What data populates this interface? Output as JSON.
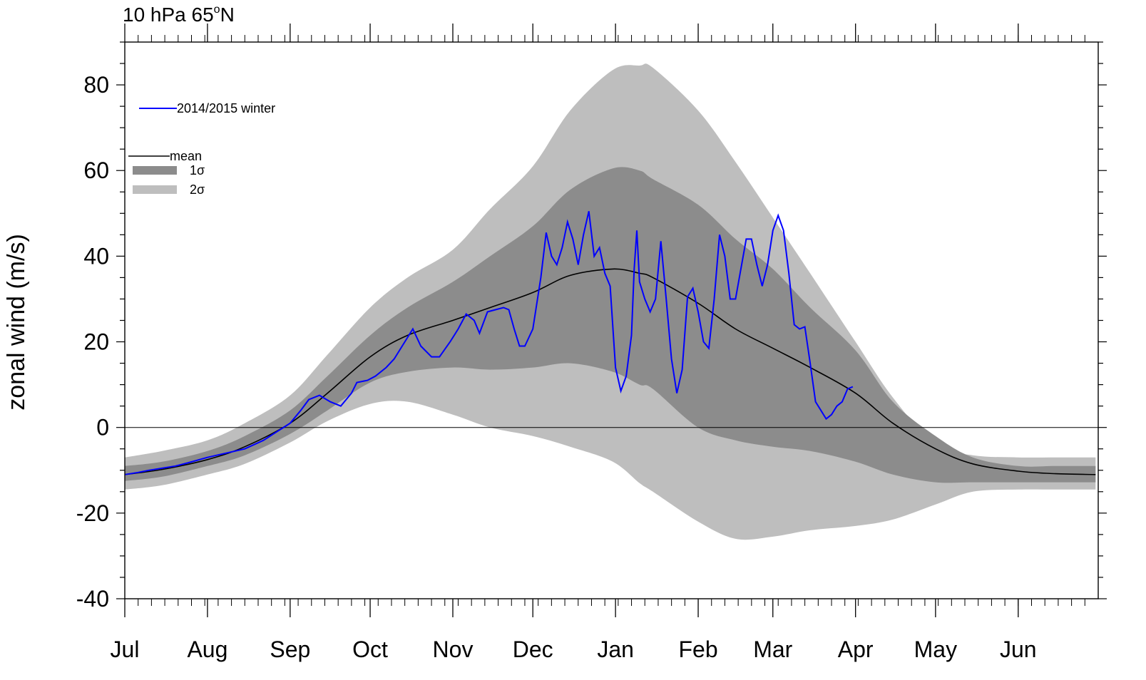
{
  "chart_data": {
    "type": "area",
    "title": "10 hPa 65°N",
    "title_parts": {
      "main": "10 hPa 65",
      "degree": "o",
      "suffix": "N"
    },
    "xlabel": "",
    "ylabel": "zonal wind (m/s)",
    "ylim": [
      -40,
      90
    ],
    "yticks": [
      -40,
      -20,
      0,
      20,
      40,
      60,
      80
    ],
    "ytick_labels": [
      "-40",
      "-20",
      "0",
      "20",
      "40",
      "60",
      "80"
    ],
    "xlim": [
      "2014-07-01",
      "2015-06-30"
    ],
    "month_ticks": [
      {
        "label": "Jul",
        "date": "2014-07-01"
      },
      {
        "label": "Aug",
        "date": "2014-08-01"
      },
      {
        "label": "Sep",
        "date": "2014-09-01"
      },
      {
        "label": "Oct",
        "date": "2014-10-01"
      },
      {
        "label": "Nov",
        "date": "2014-11-01"
      },
      {
        "label": "Dec",
        "date": "2014-12-01"
      },
      {
        "label": "Jan",
        "date": "2015-01-01"
      },
      {
        "label": "Feb",
        "date": "2015-02-01"
      },
      {
        "label": "Mar",
        "date": "2015-03-01"
      },
      {
        "label": "Apr",
        "date": "2015-04-01"
      },
      {
        "label": "May",
        "date": "2015-05-01"
      },
      {
        "label": "Jun",
        "date": "2015-06-01"
      }
    ],
    "zero_line": true,
    "grid": false,
    "legend": {
      "placement": "top-left",
      "entries": [
        {
          "key": "winter",
          "label": "2014/2015 winter",
          "kind": "line",
          "color": "#0000ff"
        },
        {
          "key": "mean",
          "label": "mean",
          "kind": "line",
          "color": "#000000"
        },
        {
          "key": "sigma1",
          "label": "1σ",
          "kind": "box",
          "color": "#8c8c8c"
        },
        {
          "key": "sigma2",
          "label": "2σ",
          "kind": "box",
          "color": "#bebebe"
        }
      ]
    },
    "colors": {
      "winter": "#0000ff",
      "mean": "#000000",
      "sigma1": "#8c8c8c",
      "sigma2": "#bebebe"
    },
    "climatology": {
      "x": [
        "2014-07-01",
        "2014-07-15",
        "2014-08-01",
        "2014-08-15",
        "2014-09-01",
        "2014-09-15",
        "2014-10-01",
        "2014-10-15",
        "2014-11-01",
        "2014-11-15",
        "2014-12-01",
        "2014-12-15",
        "2014-12-31",
        "2015-01-10",
        "2015-01-15",
        "2015-02-01",
        "2015-02-15",
        "2015-03-01",
        "2015-03-15",
        "2015-04-01",
        "2015-04-15",
        "2015-05-01",
        "2015-05-15",
        "2015-06-01",
        "2015-06-15",
        "2015-06-30"
      ],
      "mean": [
        -11,
        -9.8,
        -7.5,
        -4.5,
        1,
        8,
        16.5,
        21.5,
        25,
        28,
        31.5,
        35.5,
        37,
        36,
        35,
        29,
        23,
        18.5,
        14,
        8,
        1,
        -5,
        -8.5,
        -10.2,
        -10.8,
        -11
      ],
      "s1_low": [
        -12.5,
        -11.5,
        -9,
        -6.5,
        -1.5,
        4,
        10.5,
        13,
        14,
        13.5,
        14,
        15,
        13,
        10,
        9,
        0,
        -3,
        -4.5,
        -5.5,
        -8,
        -11,
        -12.8,
        -12.8,
        -12.8,
        -12.8,
        -12.8
      ],
      "s1_high": [
        -9,
        -8,
        -5.5,
        -2,
        4,
        12,
        21.5,
        28,
        34,
        40,
        47,
        55.5,
        60.5,
        60,
        58,
        52,
        44,
        37,
        28,
        18,
        6,
        -2,
        -7,
        -9,
        -9,
        -9
      ],
      "s2_low": [
        -14.5,
        -13.5,
        -11,
        -8.5,
        -3.5,
        1.5,
        5.5,
        6,
        3,
        0,
        -2,
        -4.5,
        -8,
        -13,
        -15,
        -22,
        -26,
        -25.5,
        -24,
        -23,
        -21.5,
        -18,
        -15,
        -14.5,
        -14.5,
        -14.5
      ],
      "s2_high": [
        -7,
        -5.5,
        -3,
        1,
        7.5,
        17,
        28,
        35,
        41.5,
        51,
        61,
        74,
        83.5,
        84.5,
        84,
        74,
        62,
        49,
        36,
        20,
        7,
        -4,
        -6.5,
        -7,
        -7,
        -7
      ]
    },
    "series": [
      {
        "name": "2014/2015 winter",
        "x": [
          "2014-07-01",
          "2014-07-06",
          "2014-07-10",
          "2014-07-15",
          "2014-07-20",
          "2014-07-25",
          "2014-08-01",
          "2014-08-08",
          "2014-08-15",
          "2014-08-22",
          "2014-08-27",
          "2014-09-01",
          "2014-09-05",
          "2014-09-08",
          "2014-09-12",
          "2014-09-16",
          "2014-09-20",
          "2014-09-24",
          "2014-09-26",
          "2014-09-30",
          "2014-10-03",
          "2014-10-07",
          "2014-10-10",
          "2014-10-14",
          "2014-10-17",
          "2014-10-20",
          "2014-10-24",
          "2014-10-27",
          "2014-10-31",
          "2014-11-03",
          "2014-11-06",
          "2014-11-09",
          "2014-11-11",
          "2014-11-14",
          "2014-11-17",
          "2014-11-20",
          "2014-11-22",
          "2014-11-24",
          "2014-11-26",
          "2014-11-28",
          "2014-12-01",
          "2014-12-04",
          "2014-12-06",
          "2014-12-08",
          "2014-12-10",
          "2014-12-12",
          "2014-12-14",
          "2014-12-16",
          "2014-12-18",
          "2014-12-20",
          "2014-12-22",
          "2014-12-24",
          "2014-12-26",
          "2014-12-28",
          "2014-12-30",
          "2015-01-01",
          "2015-01-03",
          "2015-01-05",
          "2015-01-07",
          "2015-01-08",
          "2015-01-09",
          "2015-01-10",
          "2015-01-12",
          "2015-01-14",
          "2015-01-16",
          "2015-01-18",
          "2015-01-20",
          "2015-01-22",
          "2015-01-24",
          "2015-01-26",
          "2015-01-28",
          "2015-01-30",
          "2015-02-01",
          "2015-02-03",
          "2015-02-05",
          "2015-02-07",
          "2015-02-09",
          "2015-02-11",
          "2015-02-13",
          "2015-02-15",
          "2015-02-17",
          "2015-02-19",
          "2015-02-21",
          "2015-02-23",
          "2015-02-25",
          "2015-02-27",
          "2015-03-01",
          "2015-03-03",
          "2015-03-05",
          "2015-03-07",
          "2015-03-09",
          "2015-03-11",
          "2015-03-13",
          "2015-03-15",
          "2015-03-17",
          "2015-03-19",
          "2015-03-21",
          "2015-03-23",
          "2015-03-25",
          "2015-03-27",
          "2015-03-29",
          "2015-03-31"
        ],
        "values": [
          -11,
          -10.5,
          -10,
          -9.5,
          -9,
          -8.2,
          -7,
          -6,
          -5,
          -3,
          -1,
          1,
          4,
          6.5,
          7.5,
          6,
          5,
          8,
          10.5,
          11,
          12,
          14,
          16,
          20,
          23,
          19,
          16.5,
          16.5,
          20,
          23,
          26.5,
          25,
          22,
          27,
          27.5,
          28,
          27.5,
          23,
          19,
          19,
          23,
          35,
          45.5,
          40,
          38,
          42,
          48,
          44,
          38,
          45,
          50.5,
          40,
          42,
          36,
          33,
          14,
          8.5,
          12,
          21.5,
          37,
          46,
          34,
          30,
          27,
          30,
          43.5,
          30,
          16,
          8,
          13.5,
          30.5,
          32.5,
          27,
          20,
          18.5,
          30,
          45,
          40,
          30,
          30,
          37,
          44,
          44,
          38,
          33,
          38,
          46,
          49.5,
          46,
          36,
          24,
          23,
          23.5,
          15,
          6,
          4,
          2,
          3,
          5,
          6,
          9,
          9.5
        ]
      }
    ]
  }
}
